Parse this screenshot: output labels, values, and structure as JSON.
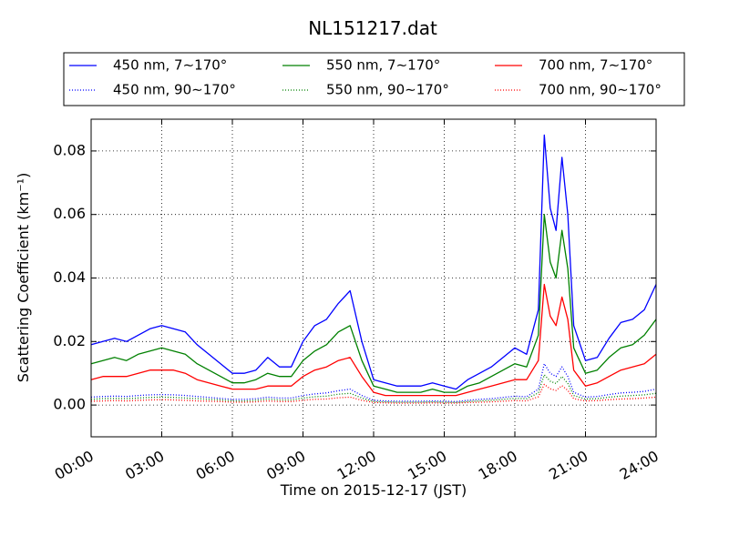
{
  "chart_data": {
    "type": "line",
    "title": "NL151217.dat",
    "xlabel": "Time on 2015-12-17 (JST)",
    "ylabel": "Scattering Coefficient (km⁻¹)",
    "xlim": [
      0,
      24
    ],
    "ylim": [
      -0.01,
      0.09
    ],
    "xticks": [
      0,
      3,
      6,
      9,
      12,
      15,
      18,
      21,
      24
    ],
    "xtick_labels": [
      "00:00",
      "03:00",
      "06:00",
      "09:00",
      "12:00",
      "15:00",
      "18:00",
      "21:00",
      "24:00"
    ],
    "yticks": [
      0.0,
      0.02,
      0.04,
      0.06,
      0.08
    ],
    "ytick_labels": [
      "0.00",
      "0.02",
      "0.04",
      "0.06",
      "0.08"
    ],
    "grid": true,
    "legend_position": "top",
    "x": [
      0,
      0.5,
      1,
      1.5,
      2,
      2.5,
      3,
      3.5,
      4,
      4.5,
      5,
      5.5,
      6,
      6.5,
      7,
      7.5,
      8,
      8.5,
      9,
      9.5,
      10,
      10.5,
      11,
      11.5,
      12,
      12.5,
      13,
      13.5,
      14,
      14.5,
      15,
      15.5,
      16,
      16.5,
      17,
      17.5,
      18,
      18.5,
      19,
      19.25,
      19.5,
      19.75,
      20,
      20.25,
      20.5,
      21,
      21.5,
      22,
      22.5,
      23,
      23.5,
      24
    ],
    "series": [
      {
        "name": "450 nm, 7∼170°",
        "color": "#0000ff",
        "style": "solid",
        "values": [
          0.019,
          0.02,
          0.021,
          0.02,
          0.022,
          0.024,
          0.025,
          0.024,
          0.023,
          0.019,
          0.016,
          0.013,
          0.01,
          0.01,
          0.011,
          0.015,
          0.012,
          0.012,
          0.02,
          0.025,
          0.027,
          0.032,
          0.036,
          0.02,
          0.008,
          0.007,
          0.006,
          0.006,
          0.006,
          0.007,
          0.006,
          0.005,
          0.008,
          0.01,
          0.012,
          0.015,
          0.018,
          0.016,
          0.03,
          0.085,
          0.062,
          0.055,
          0.078,
          0.06,
          0.025,
          0.014,
          0.015,
          0.021,
          0.026,
          0.027,
          0.03,
          0.038
        ]
      },
      {
        "name": "550 nm, 7∼170°",
        "color": "#008000",
        "style": "solid",
        "values": [
          0.013,
          0.014,
          0.015,
          0.014,
          0.016,
          0.017,
          0.018,
          0.017,
          0.016,
          0.013,
          0.011,
          0.009,
          0.007,
          0.007,
          0.008,
          0.01,
          0.009,
          0.009,
          0.014,
          0.017,
          0.019,
          0.023,
          0.025,
          0.014,
          0.006,
          0.005,
          0.004,
          0.004,
          0.004,
          0.005,
          0.004,
          0.004,
          0.006,
          0.007,
          0.009,
          0.011,
          0.013,
          0.012,
          0.022,
          0.06,
          0.045,
          0.04,
          0.055,
          0.043,
          0.018,
          0.01,
          0.011,
          0.015,
          0.018,
          0.019,
          0.022,
          0.027
        ]
      },
      {
        "name": "700 nm, 7∼170°",
        "color": "#ff0000",
        "style": "solid",
        "values": [
          0.008,
          0.009,
          0.009,
          0.009,
          0.01,
          0.011,
          0.011,
          0.011,
          0.01,
          0.008,
          0.007,
          0.006,
          0.005,
          0.005,
          0.005,
          0.006,
          0.006,
          0.006,
          0.009,
          0.011,
          0.012,
          0.014,
          0.015,
          0.009,
          0.004,
          0.003,
          0.003,
          0.003,
          0.003,
          0.003,
          0.003,
          0.003,
          0.004,
          0.005,
          0.006,
          0.007,
          0.008,
          0.008,
          0.014,
          0.038,
          0.028,
          0.025,
          0.034,
          0.027,
          0.011,
          0.006,
          0.007,
          0.009,
          0.011,
          0.012,
          0.013,
          0.016
        ]
      },
      {
        "name": "450 nm, 90∼170°",
        "color": "#0000ff",
        "style": "dotted",
        "values": [
          0.0025,
          0.0027,
          0.0028,
          0.0027,
          0.003,
          0.0032,
          0.0033,
          0.0032,
          0.003,
          0.0027,
          0.0024,
          0.0021,
          0.0018,
          0.0018,
          0.002,
          0.0025,
          0.0022,
          0.0022,
          0.003,
          0.0035,
          0.0038,
          0.0045,
          0.005,
          0.003,
          0.0015,
          0.0013,
          0.0012,
          0.0012,
          0.0012,
          0.0013,
          0.0012,
          0.0011,
          0.0015,
          0.0018,
          0.002,
          0.0024,
          0.0028,
          0.0026,
          0.005,
          0.013,
          0.01,
          0.009,
          0.012,
          0.009,
          0.004,
          0.0025,
          0.0027,
          0.0033,
          0.0038,
          0.004,
          0.0043,
          0.005
        ]
      },
      {
        "name": "550 nm, 90∼170°",
        "color": "#008000",
        "style": "dotted",
        "values": [
          0.0018,
          0.002,
          0.0021,
          0.002,
          0.0022,
          0.0024,
          0.0025,
          0.0024,
          0.0022,
          0.002,
          0.0018,
          0.0016,
          0.0013,
          0.0013,
          0.0015,
          0.0019,
          0.0016,
          0.0016,
          0.0022,
          0.0026,
          0.0028,
          0.0034,
          0.0037,
          0.0022,
          0.0011,
          0.001,
          0.0009,
          0.0009,
          0.0009,
          0.001,
          0.0009,
          0.0008,
          0.0011,
          0.0013,
          0.0015,
          0.0018,
          0.0021,
          0.002,
          0.0038,
          0.0095,
          0.0075,
          0.0068,
          0.009,
          0.0068,
          0.003,
          0.0019,
          0.002,
          0.0025,
          0.0028,
          0.003,
          0.0032,
          0.0037
        ]
      },
      {
        "name": "700 nm, 90∼170°",
        "color": "#ff0000",
        "style": "dotted",
        "values": [
          0.0012,
          0.0013,
          0.0014,
          0.0013,
          0.0015,
          0.0016,
          0.0017,
          0.0016,
          0.0015,
          0.0013,
          0.0012,
          0.0011,
          0.0009,
          0.0009,
          0.001,
          0.0013,
          0.0011,
          0.0011,
          0.0015,
          0.0018,
          0.0019,
          0.0023,
          0.0025,
          0.0015,
          0.0008,
          0.0007,
          0.0006,
          0.0006,
          0.0006,
          0.0007,
          0.0006,
          0.0006,
          0.0008,
          0.0009,
          0.001,
          0.0012,
          0.0014,
          0.0013,
          0.0026,
          0.0065,
          0.0051,
          0.0046,
          0.0061,
          0.0046,
          0.002,
          0.0013,
          0.0014,
          0.0017,
          0.0019,
          0.002,
          0.0022,
          0.0025
        ]
      }
    ]
  }
}
